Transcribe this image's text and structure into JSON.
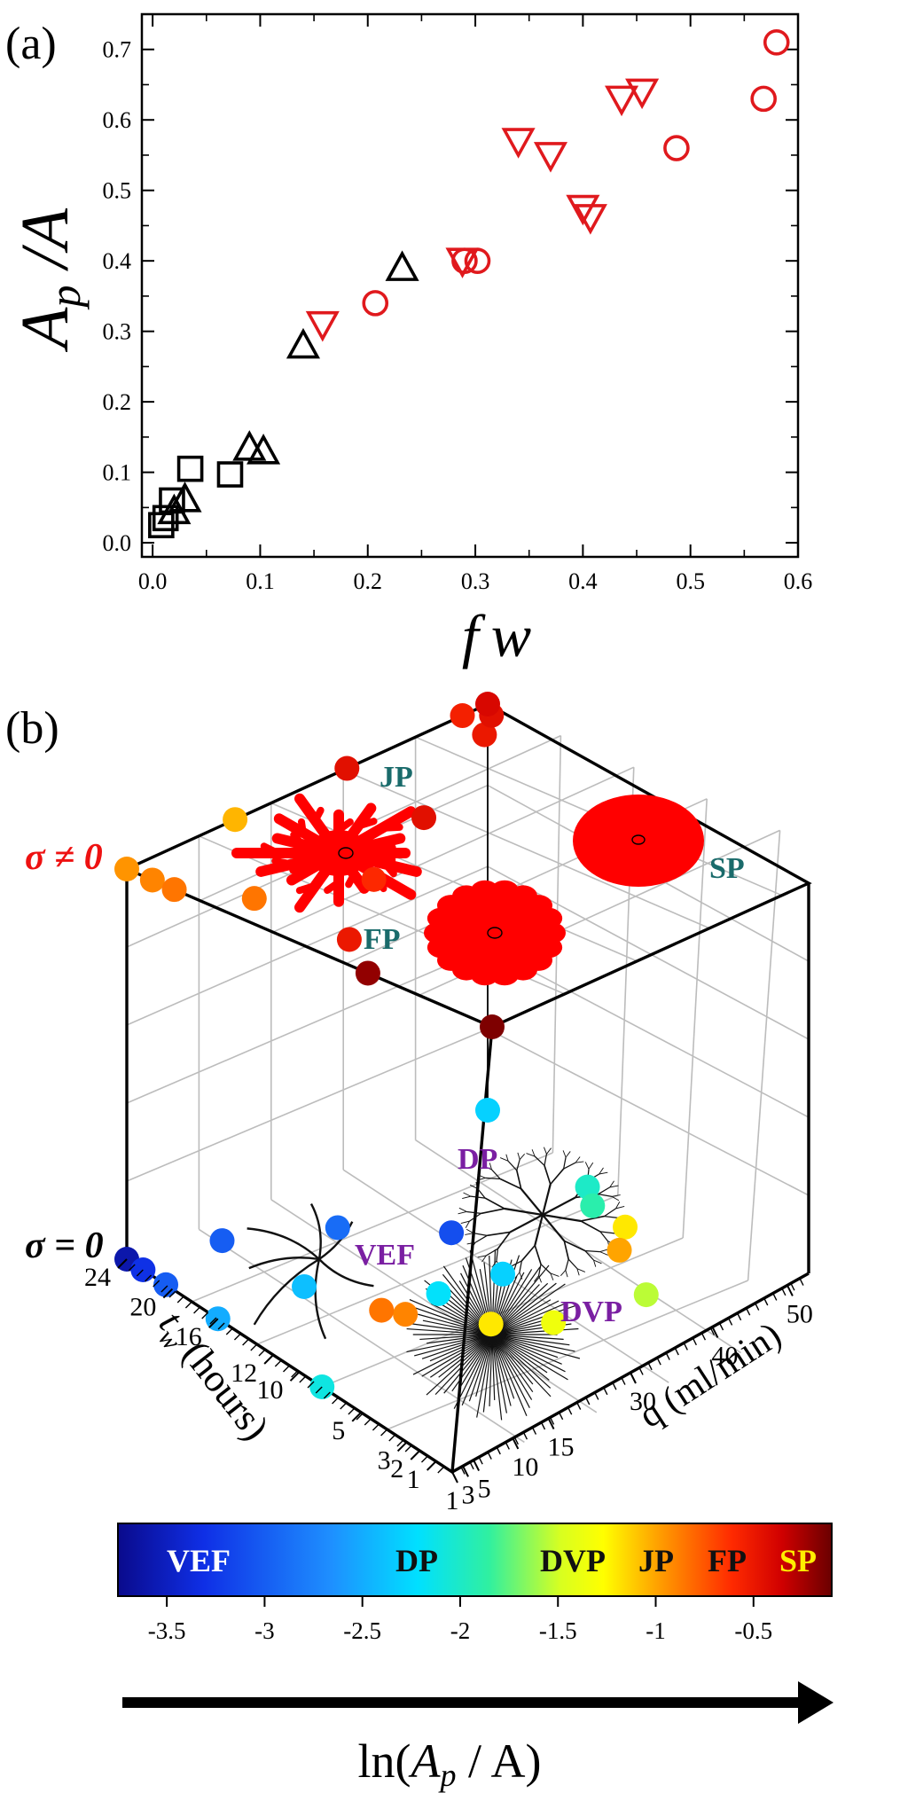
{
  "panel_a": {
    "label": "(a)",
    "ylabel_main": "A",
    "ylabel_sub": "p",
    "ylabel_rest": " /A",
    "xlabel_f": "f",
    "xlabel_w": "w"
  },
  "panel_b": {
    "label": "(b)",
    "sigma_nonzero": "σ ≠ 0",
    "sigma_zero": "σ = 0",
    "tw_axis_t": "t",
    "tw_axis_sub": "w",
    "tw_axis_rest": " (hours)",
    "q_axis": "q (ml/min)",
    "tw_ticks": [
      "24",
      "20",
      "16",
      "12",
      "10",
      "5",
      "3",
      "2",
      "1"
    ],
    "q_ticks": [
      "1",
      "3",
      "5",
      "10",
      "15",
      "30",
      "40",
      "50"
    ],
    "pattern_labels": {
      "jp": "JP",
      "fp": "FP",
      "sp": "SP",
      "dp": "DP",
      "vef": "VEF",
      "dvp": "DVP"
    }
  },
  "colorbar": {
    "labels": [
      {
        "text": "VEF",
        "color": "#ffffff"
      },
      {
        "text": "DP",
        "color": "#111111"
      },
      {
        "text": "DVP",
        "color": "#111111"
      },
      {
        "text": "JP",
        "color": "#111111"
      },
      {
        "text": "FP",
        "color": "#111111"
      },
      {
        "text": "SP",
        "color": "#ffee00"
      }
    ],
    "ticks": [
      "-3.5",
      "-3",
      "-2.5",
      "-2",
      "-1.5",
      "-1",
      "-0.5"
    ],
    "tick_values": [
      -3.5,
      -3,
      -2.5,
      -2,
      -1.5,
      -1,
      -0.5
    ],
    "range": [
      -3.75,
      -0.1
    ],
    "arrow_label_pre": "ln(",
    "arrow_label_A": "A",
    "arrow_label_p": "p",
    "arrow_label_post": " / A)"
  },
  "chart_data": [
    {
      "type": "scatter",
      "xlabel": "f w",
      "ylabel": "A_p / A",
      "xlim": [
        -0.01,
        0.6
      ],
      "ylim": [
        -0.02,
        0.75
      ],
      "xticks": [
        0.0,
        0.1,
        0.2,
        0.3,
        0.4,
        0.5,
        0.6
      ],
      "yticks": [
        0.0,
        0.1,
        0.2,
        0.3,
        0.4,
        0.5,
        0.6,
        0.7
      ],
      "xtick_labels": [
        "0.0",
        "0.1",
        "0.2",
        "0.3",
        "0.4",
        "0.5",
        "0.6"
      ],
      "ytick_labels": [
        "0.0",
        "0.1",
        "0.2",
        "0.3",
        "0.4",
        "0.5",
        "0.6",
        "0.7"
      ],
      "series": [
        {
          "marker": "square",
          "color": "#000000",
          "points": [
            [
              0.008,
              0.025
            ],
            [
              0.012,
              0.035
            ],
            [
              0.018,
              0.06
            ],
            [
              0.035,
              0.105
            ],
            [
              0.072,
              0.097
            ]
          ]
        },
        {
          "marker": "triangle-up",
          "color": "#000000",
          "points": [
            [
              0.02,
              0.045
            ],
            [
              0.03,
              0.062
            ],
            [
              0.09,
              0.135
            ],
            [
              0.103,
              0.13
            ],
            [
              0.14,
              0.28
            ],
            [
              0.232,
              0.39
            ]
          ]
        },
        {
          "marker": "triangle-down",
          "color": "#e0191d",
          "points": [
            [
              0.158,
              0.31
            ],
            [
              0.288,
              0.4
            ],
            [
              0.34,
              0.57
            ],
            [
              0.37,
              0.55
            ],
            [
              0.4,
              0.475
            ],
            [
              0.407,
              0.462
            ],
            [
              0.436,
              0.63
            ],
            [
              0.455,
              0.64
            ]
          ]
        },
        {
          "marker": "circle",
          "color": "#e0191d",
          "points": [
            [
              0.207,
              0.34
            ],
            [
              0.29,
              0.4
            ],
            [
              0.302,
              0.4
            ],
            [
              0.487,
              0.56
            ],
            [
              0.568,
              0.63
            ],
            [
              0.58,
              0.71
            ]
          ]
        }
      ]
    },
    {
      "type": "scatter",
      "xlabel": "q (ml/min)",
      "ylabel": "t_w (hours)",
      "zlabel": "σ",
      "color_scale": "ln(A_p / A)",
      "top_plane_sigma_nonzero": [
        {
          "x": 0.0,
          "y": 0.0,
          "v": -0.95
        },
        {
          "x": 0.07,
          "y": 0.0,
          "v": -0.9
        },
        {
          "x": 0.13,
          "y": 0.0,
          "v": -0.85
        },
        {
          "x": 0.0,
          "y": 0.3,
          "v": -1.05
        },
        {
          "x": 0.27,
          "y": 0.08,
          "v": -0.85
        },
        {
          "x": 0.53,
          "y": 0.08,
          "v": -0.5
        },
        {
          "x": 0.0,
          "y": 0.61,
          "v": -0.45
        },
        {
          "x": 0.38,
          "y": 0.3,
          "v": -0.6
        },
        {
          "x": 0.0,
          "y": 0.93,
          "v": -0.55
        },
        {
          "x": 0.26,
          "y": 0.56,
          "v": -0.45
        },
        {
          "x": 0.09,
          "y": 0.9,
          "v": -0.5
        },
        {
          "x": 0.04,
          "y": 0.97,
          "v": -0.45
        },
        {
          "x": 0.0,
          "y": 1.0,
          "v": -0.4
        },
        {
          "x": 0.66,
          "y": 0.0,
          "v": -0.2
        },
        {
          "x": 1.0,
          "y": 0.0,
          "v": -0.15
        }
      ],
      "bottom_plane_sigma_zero": [
        {
          "x": 0.0,
          "y": 0.0,
          "v": -3.6
        },
        {
          "x": 0.05,
          "y": 0.0,
          "v": -3.3
        },
        {
          "x": 0.12,
          "y": 0.0,
          "v": -3.0
        },
        {
          "x": 0.28,
          "y": 0.0,
          "v": -2.5
        },
        {
          "x": 0.6,
          "y": 0.0,
          "v": -2.1
        },
        {
          "x": 0.06,
          "y": 0.21,
          "v": -3.0
        },
        {
          "x": 0.29,
          "y": 0.23,
          "v": -2.4
        },
        {
          "x": 0.16,
          "y": 0.44,
          "v": -2.9
        },
        {
          "x": 0.47,
          "y": 0.44,
          "v": -2.2
        },
        {
          "x": 0.31,
          "y": 0.62,
          "v": -3.1
        },
        {
          "x": 0.49,
          "y": 0.6,
          "v": -2.3
        },
        {
          "x": 0.0,
          "y": 1.0,
          "v": -2.3
        },
        {
          "x": 0.34,
          "y": 0.97,
          "v": -2.0
        },
        {
          "x": 0.4,
          "y": 0.93,
          "v": -1.9
        },
        {
          "x": 0.5,
          "y": 0.93,
          "v": -1.2
        },
        {
          "x": 0.56,
          "y": 0.86,
          "v": -1.0
        },
        {
          "x": 0.72,
          "y": 0.79,
          "v": -1.55
        },
        {
          "x": 0.69,
          "y": 0.56,
          "v": -1.35
        },
        {
          "x": 0.62,
          "y": 0.45,
          "v": -1.2
        },
        {
          "x": 0.49,
          "y": 0.33,
          "v": -0.9
        },
        {
          "x": 0.45,
          "y": 0.3,
          "v": -0.85
        }
      ]
    }
  ]
}
